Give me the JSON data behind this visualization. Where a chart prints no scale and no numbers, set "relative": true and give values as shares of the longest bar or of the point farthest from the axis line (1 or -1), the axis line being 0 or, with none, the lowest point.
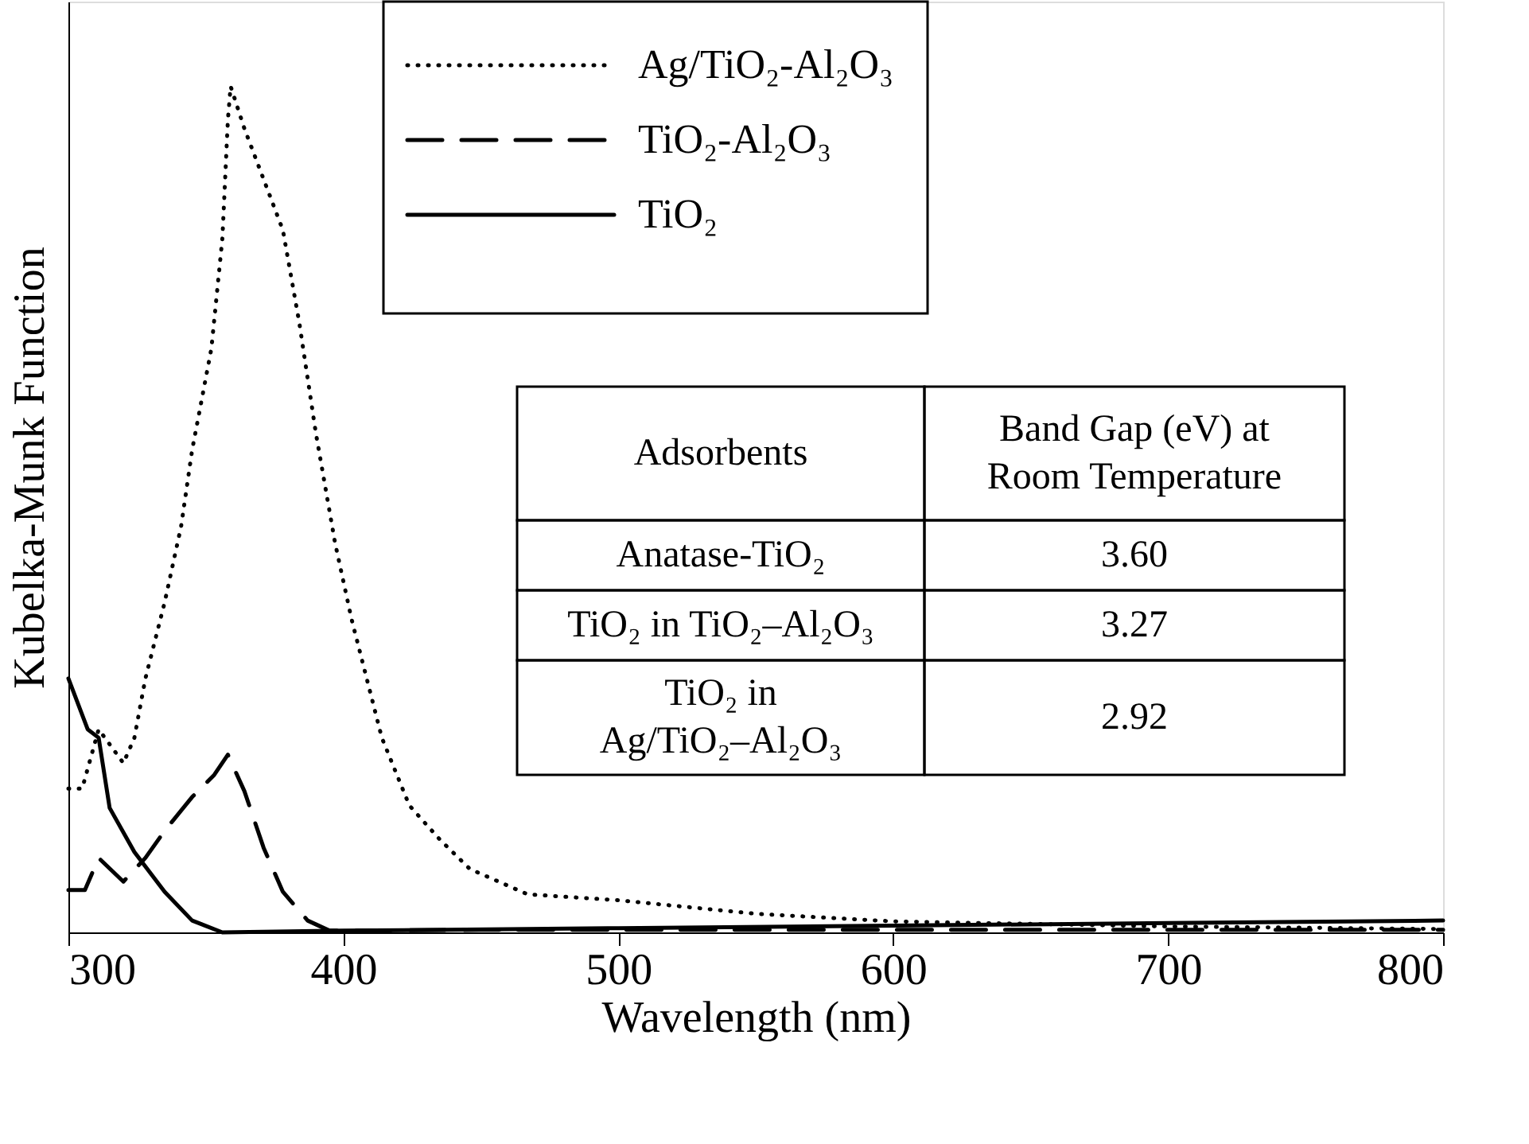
{
  "chart_data": {
    "type": "line",
    "relative": true,
    "xlabel": "Wavelength (nm)",
    "ylabel": "Kubelka-Munk Function",
    "xlim": [
      300,
      800
    ],
    "xticks": [
      300,
      400,
      500,
      600,
      700,
      800
    ],
    "grid": false,
    "legend": "top",
    "tick_labels": "x",
    "series": [
      {
        "name": "Ag/TiO₂-Al₂O₃",
        "color": "#000000",
        "line_style": "dotted",
        "x": [
          300,
          305,
          311,
          320,
          324,
          328,
          335,
          341,
          345,
          352,
          356,
          358,
          359,
          364,
          371,
          378,
          384,
          390,
          397,
          403,
          414,
          424,
          435,
          446,
          467,
          500,
          550,
          600,
          700,
          800
        ],
        "values": [
          0.17,
          0.17,
          0.24,
          0.2,
          0.23,
          0.3,
          0.39,
          0.48,
          0.57,
          0.69,
          0.82,
          0.96,
          1.0,
          0.95,
          0.89,
          0.83,
          0.72,
          0.59,
          0.46,
          0.37,
          0.23,
          0.15,
          0.11,
          0.075,
          0.045,
          0.038,
          0.022,
          0.013,
          0.007,
          0.004
        ]
      },
      {
        "name": "TiO₂-Al₂O₃",
        "color": "#000000",
        "line_style": "dashed",
        "x": [
          300,
          306,
          311,
          320,
          328,
          335,
          345,
          353,
          358,
          364,
          371,
          378,
          387,
          395,
          450,
          600,
          800
        ],
        "values": [
          0.05,
          0.05,
          0.088,
          0.06,
          0.088,
          0.12,
          0.16,
          0.186,
          0.21,
          0.167,
          0.1,
          0.048,
          0.014,
          0.002,
          0.003,
          0.003,
          0.003
        ]
      },
      {
        "name": "TiO₂",
        "color": "#000000",
        "line_style": "solid",
        "x": [
          300,
          307,
          311,
          315,
          324,
          335,
          345,
          356,
          400,
          500,
          600,
          700,
          800
        ],
        "values": [
          0.3,
          0.24,
          0.23,
          0.147,
          0.095,
          0.048,
          0.014,
          0.0,
          0.002,
          0.005,
          0.008,
          0.011,
          0.014
        ]
      }
    ],
    "annotations": [
      "Adsorbents",
      "Band Gap (eV) at Room Temperature",
      "Anatase-TiO₂",
      "3.60",
      "TiO₂ in TiO₂–Al₂O₃",
      "3.27",
      "TiO₂ in Ag/TiO₂–Al₂O₃",
      "2.92"
    ]
  }
}
